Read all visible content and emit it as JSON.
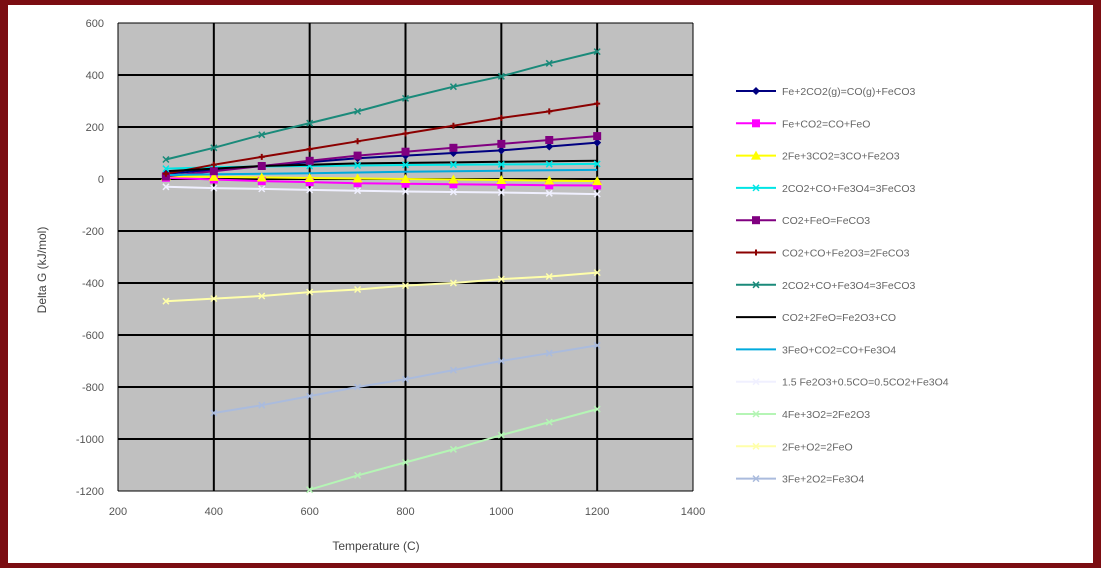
{
  "chart_data": {
    "type": "line",
    "title": "",
    "xlabel": "Temperature (C)",
    "ylabel": "Delta G (kJ/mol)",
    "xlim": [
      200,
      1400
    ],
    "ylim": [
      -1200,
      600
    ],
    "xticks": [
      200,
      400,
      600,
      800,
      1000,
      1200,
      1400
    ],
    "yticks": [
      -1200,
      -1000,
      -800,
      -600,
      -400,
      -200,
      0,
      200,
      400,
      600
    ],
    "grid": true,
    "plot_background": "#c0c0c0",
    "gridline_color": "#000000",
    "legend_position": "right",
    "series": [
      {
        "name": "Fe+2CO2(g)=CO(g)+FeCO3",
        "color": "#000080",
        "marker": "diamond",
        "x": [
          300,
          400,
          500,
          600,
          700,
          800,
          900,
          1000,
          1100,
          1200
        ],
        "y": [
          20,
          35,
          50,
          65,
          80,
          90,
          100,
          110,
          125,
          140
        ]
      },
      {
        "name": "Fe+CO2=CO+FeO",
        "color": "#ff00ff",
        "marker": "square",
        "x": [
          300,
          400,
          500,
          600,
          700,
          800,
          900,
          1000,
          1100,
          1200
        ],
        "y": [
          5,
          -2,
          -8,
          -12,
          -16,
          -18,
          -20,
          -22,
          -24,
          -25
        ]
      },
      {
        "name": "2Fe+3CO2=3CO+Fe2O3",
        "color": "#ffff00",
        "marker": "triangle",
        "x": [
          300,
          400,
          500,
          600,
          700,
          800,
          900,
          1000,
          1100,
          1200
        ],
        "y": [
          10,
          8,
          6,
          4,
          2,
          0,
          -2,
          -4,
          -6,
          -8
        ]
      },
      {
        "name": "2CO2+CO+Fe3O4=3FeCO3",
        "color": "#00e5e5",
        "marker": "x",
        "x": [
          300,
          400,
          500,
          600,
          700,
          800,
          900,
          1000,
          1100,
          1200
        ],
        "y": [
          40,
          45,
          48,
          50,
          52,
          54,
          55,
          56,
          57,
          58
        ]
      },
      {
        "name": "CO2+FeO=FeCO3",
        "color": "#800080",
        "marker": "square",
        "x": [
          300,
          400,
          500,
          600,
          700,
          800,
          900,
          1000,
          1100,
          1200
        ],
        "y": [
          10,
          30,
          50,
          70,
          90,
          105,
          120,
          135,
          150,
          165
        ]
      },
      {
        "name": "CO2+CO+Fe2O3=2FeCO3",
        "color": "#8b0000",
        "marker": "plus",
        "x": [
          300,
          400,
          500,
          600,
          700,
          800,
          900,
          1000,
          1100,
          1200
        ],
        "y": [
          20,
          55,
          85,
          115,
          145,
          175,
          205,
          235,
          260,
          290
        ]
      },
      {
        "name": "2CO2+CO+Fe3O4=3FeCO3",
        "color": "#1a8a7a",
        "marker": "x",
        "x": [
          300,
          400,
          500,
          600,
          700,
          800,
          900,
          1000,
          1100,
          1200
        ],
        "y": [
          75,
          120,
          170,
          215,
          260,
          310,
          355,
          395,
          445,
          490
        ]
      },
      {
        "name": "CO2+2FeO=Fe2O3+CO",
        "color": "#000000",
        "marker": "none",
        "x": [
          300,
          400,
          500,
          600,
          700,
          800,
          900,
          1000,
          1100,
          1200
        ],
        "y": [
          30,
          40,
          50,
          55,
          60,
          62,
          64,
          66,
          68,
          70
        ]
      },
      {
        "name": "3FeO+CO2=CO+Fe3O4",
        "color": "#00aadd",
        "marker": "none",
        "x": [
          300,
          400,
          500,
          600,
          700,
          800,
          900,
          1000,
          1100,
          1200
        ],
        "y": [
          15,
          18,
          20,
          22,
          25,
          28,
          30,
          32,
          34,
          35
        ]
      },
      {
        "name": "1.5 Fe2O3+0.5CO=0.5CO2+Fe3O4",
        "color": "#f0f0ff",
        "marker": "x",
        "x": [
          300,
          400,
          500,
          600,
          700,
          800,
          900,
          1000,
          1100,
          1200
        ],
        "y": [
          -30,
          -35,
          -38,
          -42,
          -45,
          -48,
          -50,
          -52,
          -55,
          -58
        ]
      },
      {
        "name": "4Fe+3O2=2Fe2O3",
        "color": "#b5f5b5",
        "marker": "x",
        "x": [
          600,
          700,
          800,
          900,
          1000,
          1100,
          1200
        ],
        "y": [
          -1195,
          -1140,
          -1090,
          -1040,
          -985,
          -935,
          -885
        ]
      },
      {
        "name": "2Fe+O2=2FeO",
        "color": "#ffffaa",
        "marker": "x",
        "x": [
          300,
          400,
          500,
          600,
          700,
          800,
          900,
          1000,
          1100,
          1200
        ],
        "y": [
          -470,
          -460,
          -450,
          -435,
          -425,
          -410,
          -400,
          -385,
          -375,
          -360
        ]
      },
      {
        "name": "3Fe+2O2=Fe3O4",
        "color": "#aabbdd",
        "marker": "x",
        "x": [
          400,
          500,
          600,
          700,
          800,
          900,
          1000,
          1100,
          1200
        ],
        "y": [
          -900,
          -870,
          -835,
          -800,
          -770,
          -735,
          -700,
          -670,
          -640
        ]
      }
    ]
  }
}
